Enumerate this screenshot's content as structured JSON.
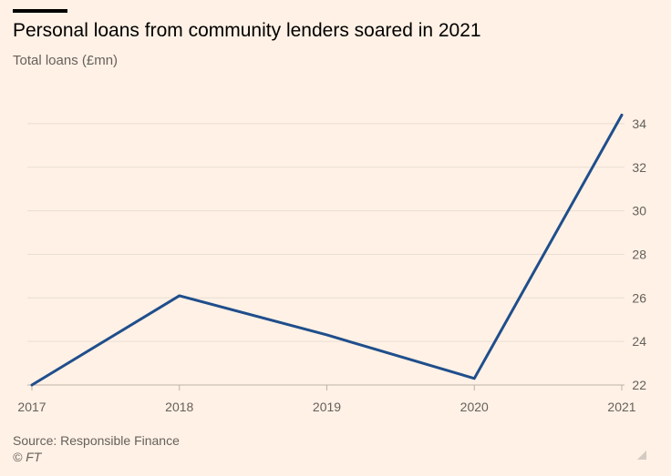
{
  "header": {
    "title": "Personal loans from community lenders soared in 2021",
    "subtitle": "Total loans (£mn)"
  },
  "footer": {
    "source": "Source: Responsible Finance",
    "credit": "© FT"
  },
  "icons": {
    "resize": "resize-corner-icon"
  },
  "colors": {
    "background": "#fff1e5",
    "line": "#1f4e8c",
    "gridline": "#e9ddd2",
    "axis": "#bdb2a8",
    "text_muted": "#66605c"
  },
  "chart_data": {
    "type": "line",
    "title": "Personal loans from community lenders soared in 2021",
    "ylabel": "Total loans (£mn)",
    "xlabel": "",
    "x": [
      "2017",
      "2018",
      "2019",
      "2020",
      "2021"
    ],
    "series": [
      {
        "values": [
          22.0,
          26.1,
          24.3,
          22.3,
          34.4
        ]
      }
    ],
    "ylim": [
      22,
      35
    ],
    "yticks": [
      22,
      24,
      26,
      28,
      30,
      32,
      34
    ],
    "y_axis_side": "right",
    "grid": true
  }
}
